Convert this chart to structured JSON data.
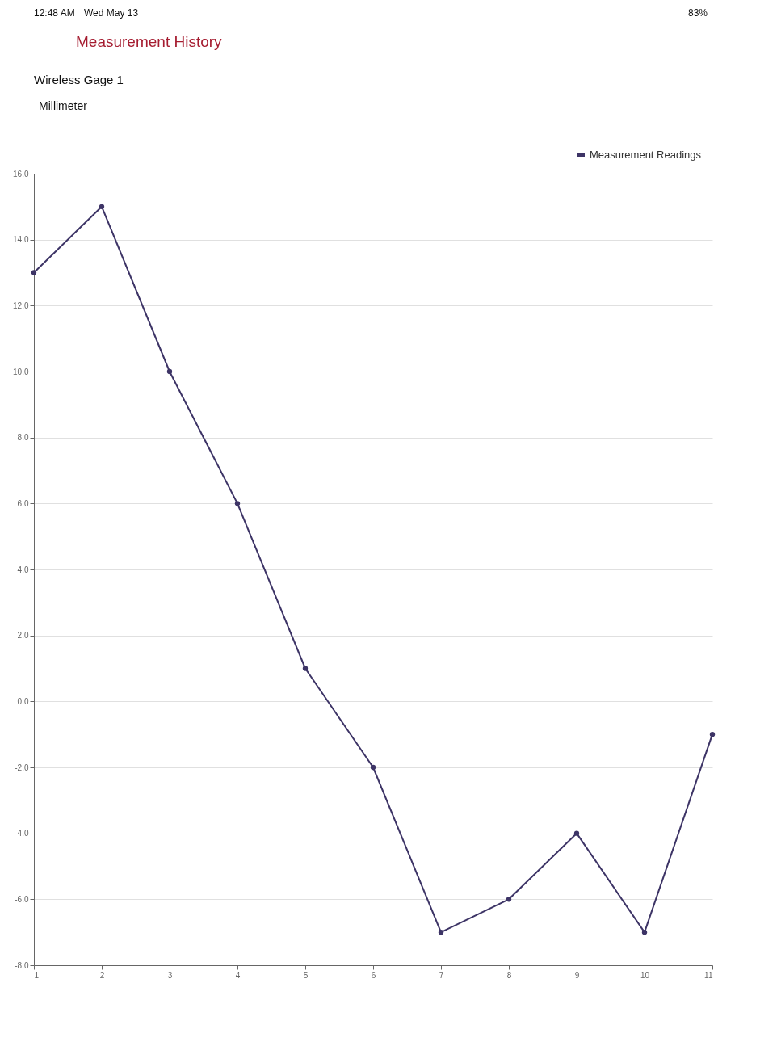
{
  "chart_data": {
    "type": "line",
    "title": "Measurement History",
    "subtitle": "Wireless Gage 1",
    "annotations": [
      "12:48 AM",
      "Wed May 13",
      "83%",
      "Millimeter"
    ],
    "x": [
      1,
      2,
      3,
      4,
      5,
      6,
      7,
      8,
      9,
      10,
      11
    ],
    "series": [
      {
        "name": "Measurement Readings",
        "color": "#3d3466",
        "values": [
          13,
          15,
          10,
          6,
          1,
          -2,
          -7,
          -6,
          -4,
          -7,
          -1
        ]
      }
    ],
    "xlim": [
      1,
      11
    ],
    "xticks": [
      1,
      2,
      3,
      4,
      5,
      6,
      7,
      8,
      9,
      10,
      11
    ],
    "ylim": [
      -8,
      16
    ],
    "yticks": [
      {
        "value": -8,
        "label": "-8.0"
      },
      {
        "value": -6,
        "label": "-6.0"
      },
      {
        "value": -4,
        "label": "-4.0"
      },
      {
        "value": -2,
        "label": "-2.0"
      },
      {
        "value": 0,
        "label": "0.0"
      },
      {
        "value": 2,
        "label": "2.0"
      },
      {
        "value": 4,
        "label": "4.0"
      },
      {
        "value": 6,
        "label": "6.0"
      },
      {
        "value": 8,
        "label": "8.0"
      },
      {
        "value": 10,
        "label": "10.0"
      },
      {
        "value": 12,
        "label": "12.0"
      },
      {
        "value": 14,
        "label": "14.0"
      },
      {
        "value": 16,
        "label": "16.0"
      }
    ],
    "grid": "y",
    "legend": "top right",
    "marker": "circle",
    "line_style": "solid"
  }
}
